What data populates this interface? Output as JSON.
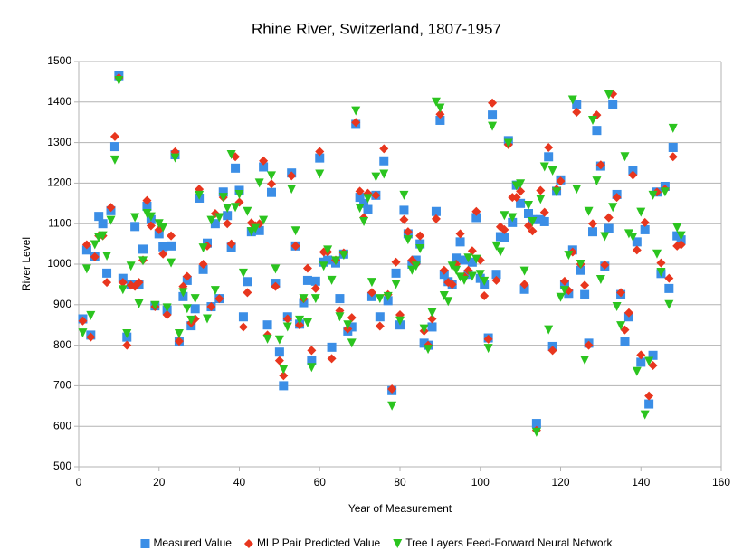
{
  "chart_data": {
    "type": "scatter",
    "title": "Rhine River, Switzerland, 1807-1957",
    "x_label": "Year of Measurement",
    "y_label": "River Level",
    "xlim": [
      0,
      160
    ],
    "xticks": [
      0,
      20,
      40,
      60,
      80,
      100,
      120,
      140,
      160
    ],
    "ylim": [
      500,
      1500
    ],
    "yticks": [
      500,
      600,
      700,
      800,
      900,
      1000,
      1100,
      1200,
      1300,
      1400,
      1500
    ],
    "grid": true,
    "legend": "bottom",
    "x": [
      1,
      2,
      3,
      4,
      5,
      6,
      7,
      8,
      9,
      10,
      11,
      12,
      13,
      14,
      15,
      16,
      17,
      18,
      19,
      20,
      21,
      22,
      23,
      24,
      25,
      26,
      27,
      28,
      29,
      30,
      31,
      32,
      33,
      34,
      35,
      36,
      37,
      38,
      39,
      40,
      41,
      42,
      43,
      44,
      45,
      46,
      47,
      48,
      49,
      50,
      51,
      52,
      53,
      54,
      55,
      56,
      57,
      58,
      59,
      60,
      61,
      62,
      63,
      64,
      65,
      66,
      67,
      68,
      69,
      70,
      71,
      72,
      73,
      74,
      75,
      76,
      77,
      78,
      79,
      80,
      81,
      82,
      83,
      84,
      85,
      86,
      87,
      88,
      89,
      90,
      91,
      92,
      93,
      94,
      95,
      96,
      97,
      98,
      99,
      100,
      101,
      102,
      103,
      104,
      105,
      106,
      107,
      108,
      109,
      110,
      111,
      112,
      113,
      114,
      115,
      116,
      117,
      118,
      119,
      120,
      121,
      122,
      123,
      124,
      125,
      126,
      127,
      128,
      129,
      130,
      131,
      132,
      133,
      134,
      135,
      136,
      137,
      138,
      139,
      140,
      141,
      142,
      143,
      144,
      145,
      146,
      147,
      148,
      149,
      150
    ],
    "series": [
      {
        "name": "Measured Value",
        "color": "#3b8ee6",
        "marker": "square",
        "values": [
          865,
          1035,
          825,
          1020,
          1118,
          1100,
          978,
          1132,
          1290,
          1465,
          965,
          820,
          950,
          1093,
          950,
          1037,
          1143,
          1110,
          897,
          1075,
          1043,
          887,
          1045,
          1270,
          808,
          920,
          960,
          848,
          890,
          1163,
          987,
          1052,
          895,
          1100,
          915,
          1178,
          1120,
          1042,
          1237,
          1182,
          870,
          957,
          1080,
          1090,
          1083,
          1240,
          850,
          1177,
          953,
          783,
          700,
          870,
          1225,
          1045,
          852,
          905,
          960,
          762,
          958,
          1262,
          1005,
          1010,
          795,
          1003,
          915,
          1025,
          835,
          845,
          1345,
          1165,
          1150,
          1135,
          920,
          1170,
          870,
          1255,
          910,
          688,
          978,
          850,
          1133,
          1075,
          1000,
          1010,
          1050,
          805,
          800,
          845,
          1130,
          1355,
          975,
          957,
          950,
          1015,
          1055,
          1010,
          975,
          1005,
          1115,
          965,
          950,
          818,
          1368,
          975,
          1068,
          1065,
          1305,
          1103,
          1195,
          1150,
          938,
          1125,
          1110,
          607,
          1110,
          1105,
          1265,
          797,
          1180,
          1208,
          950,
          928,
          1035,
          1395,
          985,
          925,
          805,
          1080,
          1330,
          1242,
          995,
          1088,
          1395,
          1172,
          925,
          808,
          870,
          1232,
          1055,
          758,
          1085,
          655,
          775,
          1178,
          977,
          1192,
          940,
          1288,
          1070,
          1060
        ]
      },
      {
        "name": "MLP Pair Predicted Value",
        "color": "#e8361e",
        "marker": "diamond",
        "values": [
          860,
          1048,
          820,
          1018,
          1070,
          1070,
          955,
          1140,
          1315,
          1460,
          955,
          800,
          948,
          945,
          955,
          1010,
          1157,
          1095,
          895,
          1085,
          1025,
          875,
          1070,
          1277,
          810,
          945,
          970,
          855,
          865,
          1185,
          1000,
          1045,
          895,
          1125,
          915,
          1165,
          1100,
          1050,
          1265,
          1153,
          845,
          930,
          1102,
          1095,
          1100,
          1255,
          825,
          1198,
          945,
          762,
          725,
          865,
          1218,
          1045,
          850,
          915,
          990,
          787,
          940,
          1278,
          1030,
          1030,
          767,
          1010,
          885,
          1028,
          840,
          868,
          1350,
          1180,
          1115,
          1175,
          930,
          1170,
          847,
          1285,
          925,
          692,
          1005,
          875,
          1110,
          1080,
          1010,
          1000,
          1070,
          835,
          800,
          865,
          1112,
          1370,
          985,
          955,
          950,
          1000,
          1075,
          970,
          985,
          1033,
          1130,
          1010,
          922,
          815,
          1398,
          960,
          1092,
          1085,
          1295,
          1165,
          1165,
          1180,
          950,
          1095,
          1082,
          590,
          1182,
          1128,
          1288,
          787,
          1185,
          1205,
          958,
          935,
          1030,
          1375,
          1000,
          948,
          800,
          1100,
          1368,
          1245,
          998,
          1115,
          1420,
          1165,
          930,
          838,
          880,
          1220,
          1035,
          776,
          1103,
          675,
          750,
          1178,
          1003,
          1185,
          965,
          1265,
          1045,
          1048
        ]
      },
      {
        "name": "Tree Layers Feed-Forward Neural Network",
        "color": "#2bc41f",
        "marker": "triangle",
        "values": [
          830,
          988,
          873,
          1048,
          1065,
          1070,
          1020,
          1108,
          1257,
          1453,
          937,
          828,
          995,
          1115,
          902,
          1008,
          1125,
          1117,
          898,
          1100,
          1090,
          892,
          1003,
          1262,
          828,
          930,
          890,
          862,
          915,
          1170,
          1040,
          865,
          1108,
          935,
          1115,
          1165,
          1138,
          1270,
          1140,
          1172,
          978,
          1130,
          1080,
          1088,
          1200,
          1108,
          815,
          1218,
          988,
          813,
          740,
          845,
          1185,
          1082,
          862,
          915,
          855,
          745,
          915,
          1222,
          995,
          1035,
          960,
          1008,
          870,
          1022,
          850,
          805,
          1378,
          1138,
          1105,
          1162,
          955,
          1215,
          915,
          1222,
          920,
          650,
          950,
          860,
          1170,
          1060,
          985,
          995,
          1038,
          840,
          790,
          880,
          1400,
          1385,
          922,
          908,
          995,
          985,
          968,
          960,
          1015,
          970,
          1012,
          975,
          958,
          792,
          1340,
          1045,
          1030,
          1120,
          1298,
          1115,
          1193,
          1198,
          983,
          1145,
          1105,
          585,
          1160,
          1240,
          838,
          1230,
          1178,
          918,
          935,
          1022,
          1405,
          1185,
          1000,
          763,
          1130,
          1355,
          1205,
          962,
          1068,
          1418,
          1140,
          895,
          848,
          1265,
          1075,
          1067,
          735,
          1128,
          628,
          760,
          1170,
          1025,
          980,
          1178,
          900,
          1335,
          1090,
          1070
        ]
      }
    ]
  }
}
